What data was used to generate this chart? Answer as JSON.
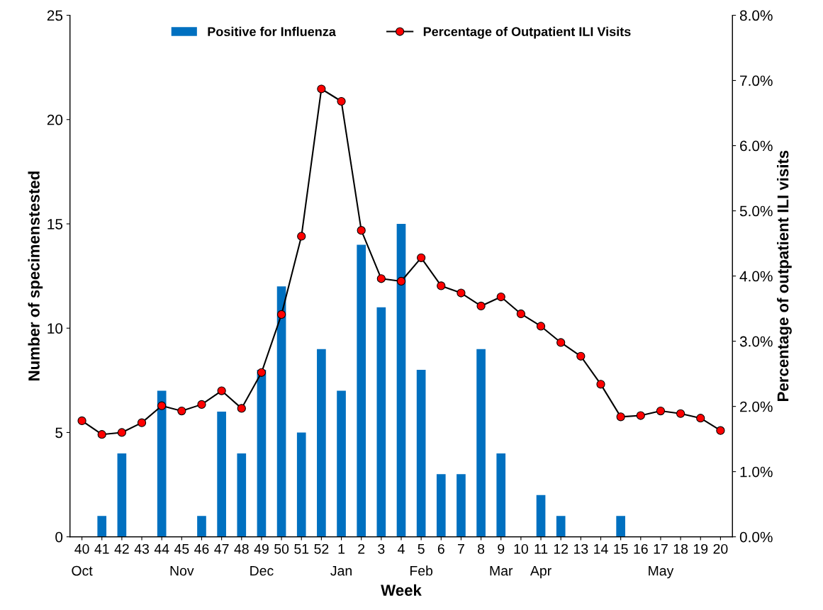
{
  "chart_data": {
    "type": "bar",
    "xlabel": "Week",
    "ylabel": "Number of specimenstested",
    "y2label": "Percentage of outpatient ILI visits",
    "categories": [
      "40\nOct",
      "41",
      "42",
      "43",
      "44",
      "45\nNov",
      "46",
      "47",
      "48",
      "49\nDec",
      "50",
      "51",
      "52",
      "1\nJan",
      "2",
      "3",
      "4",
      "5\nFeb",
      "6",
      "7",
      "8",
      "9\nMar",
      "10",
      "11\nApr",
      "12",
      "13",
      "14",
      "15",
      "16",
      "17\nMay",
      "18",
      "19",
      "20"
    ],
    "series": [
      {
        "name": "Positive for Influenza",
        "color": "#0070c0",
        "values": [
          0,
          1,
          4,
          0,
          7,
          0,
          1,
          6,
          4,
          8,
          12,
          5,
          9,
          7,
          14,
          11,
          15,
          8,
          3,
          3,
          9,
          4,
          0,
          2,
          1,
          0,
          0,
          1,
          0,
          0,
          0,
          0,
          0
        ]
      },
      {
        "name": "Percentage of Outpatient ILI Visits",
        "type": "line",
        "axis": "y2",
        "color": "#ff0000",
        "marker": "circle",
        "values": [
          1.78,
          1.57,
          1.6,
          1.75,
          2.01,
          1.93,
          2.03,
          2.24,
          1.97,
          2.52,
          3.41,
          4.61,
          6.87,
          6.68,
          4.7,
          3.96,
          3.92,
          4.28,
          3.85,
          3.74,
          3.54,
          3.68,
          3.42,
          3.23,
          2.98,
          2.77,
          2.34,
          1.84,
          1.86,
          1.93,
          1.89,
          1.82,
          1.63
        ]
      }
    ],
    "ylim": [
      0,
      25
    ],
    "yticks": [
      0,
      5,
      10,
      15,
      20,
      25
    ],
    "y2lim": [
      0,
      8
    ],
    "y2ticks": [
      {
        "value": 0,
        "label": "0.0%"
      },
      {
        "value": 1,
        "label": "1.0%"
      },
      {
        "value": 2,
        "label": "2.0%"
      },
      {
        "value": 3,
        "label": "3.0%"
      },
      {
        "value": 4,
        "label": "4.0%"
      },
      {
        "value": 5,
        "label": "5.0%"
      },
      {
        "value": 6,
        "label": "6.0%"
      },
      {
        "value": 7,
        "label": "7.0%"
      },
      {
        "value": 8,
        "label": "8.0%"
      }
    ],
    "legend": "top",
    "grid": false
  }
}
